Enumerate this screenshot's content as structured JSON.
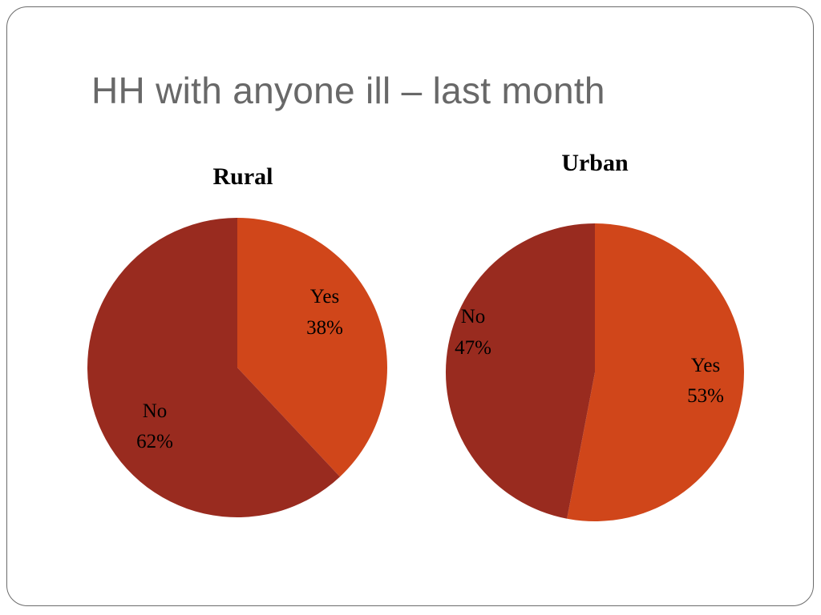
{
  "slide": {
    "title": "HH with anyone ill – last month"
  },
  "colors": {
    "yes": "#D0461A",
    "no": "#992B1F",
    "border": "#6b6b6b",
    "title": "#686868"
  },
  "chart_data": [
    {
      "type": "pie",
      "title": "Rural",
      "slices": [
        {
          "label": "Yes",
          "value": 38,
          "value_label": "38%",
          "color": "#D0461A"
        },
        {
          "label": "No",
          "value": 62,
          "value_label": "62%",
          "color": "#992B1F"
        }
      ]
    },
    {
      "type": "pie",
      "title": "Urban",
      "slices": [
        {
          "label": "Yes",
          "value": 53,
          "value_label": "53%",
          "color": "#D0461A"
        },
        {
          "label": "No",
          "value": 47,
          "value_label": "47%",
          "color": "#992B1F"
        }
      ]
    }
  ]
}
